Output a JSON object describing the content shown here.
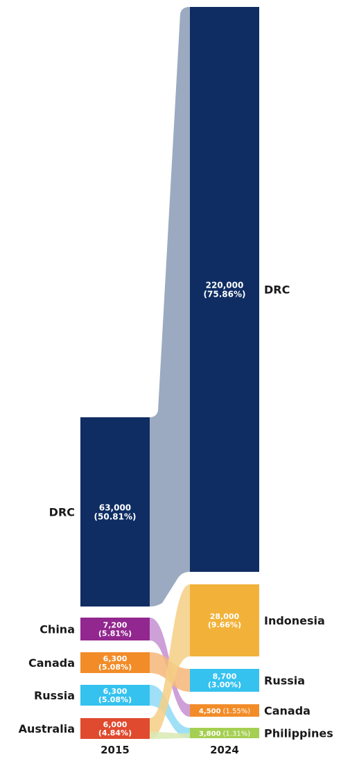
{
  "chart_data": {
    "type": "sankey",
    "columns": [
      "2015",
      "2024"
    ],
    "nodes_2015": [
      {
        "name": "DRC",
        "value": 63000,
        "value_label": "63,000",
        "share_label": "(50.81%)",
        "color": "#0f2d63"
      },
      {
        "name": "China",
        "value": 7200,
        "value_label": "7,200",
        "share_label": "(5.81%)",
        "color": "#92278f"
      },
      {
        "name": "Canada",
        "value": 6300,
        "value_label": "6,300",
        "share_label": "(5.08%)",
        "color": "#f28c28"
      },
      {
        "name": "Russia",
        "value": 6300,
        "value_label": "6,300",
        "share_label": "(5.08%)",
        "color": "#35c2ef"
      },
      {
        "name": "Australia",
        "value": 6000,
        "value_label": "6,000",
        "share_label": "(4.84%)",
        "color": "#e04a2f"
      }
    ],
    "nodes_2024": [
      {
        "name": "DRC",
        "value": 220000,
        "value_label": "220,000",
        "share_label": "(75.86%)",
        "color": "#0f2d63"
      },
      {
        "name": "Indonesia",
        "value": 28000,
        "value_label": "28,000",
        "share_label": "(9.66%)",
        "color": "#f2b23a"
      },
      {
        "name": "Russia",
        "value": 8700,
        "value_label": "8,700",
        "share_label": "(3.00%)",
        "color": "#35c2ef"
      },
      {
        "name": "Canada",
        "value": 4500,
        "value_label": "4,500",
        "share_label": "(1.55%)",
        "color": "#f28c28"
      },
      {
        "name": "Philippines",
        "value": 3800,
        "value_label": "3,800",
        "share_label": "(1.31%)",
        "color": "#a5cf52"
      }
    ],
    "links": [
      {
        "from": "DRC",
        "to": "DRC",
        "color": "#8a9bb5"
      },
      {
        "from": "China",
        "to": "Canada",
        "color": "#c68fd1"
      },
      {
        "from": "Canada",
        "to": "Russia",
        "color": "#f6b679"
      },
      {
        "from": "Russia",
        "to": "Philippines",
        "color": "#8fdaf5"
      },
      {
        "from": "Australia",
        "to": "Indonesia",
        "color": "#f5cf85"
      },
      {
        "from": "Australia",
        "to": "Philippines",
        "color": "#d8e9b3"
      }
    ]
  }
}
